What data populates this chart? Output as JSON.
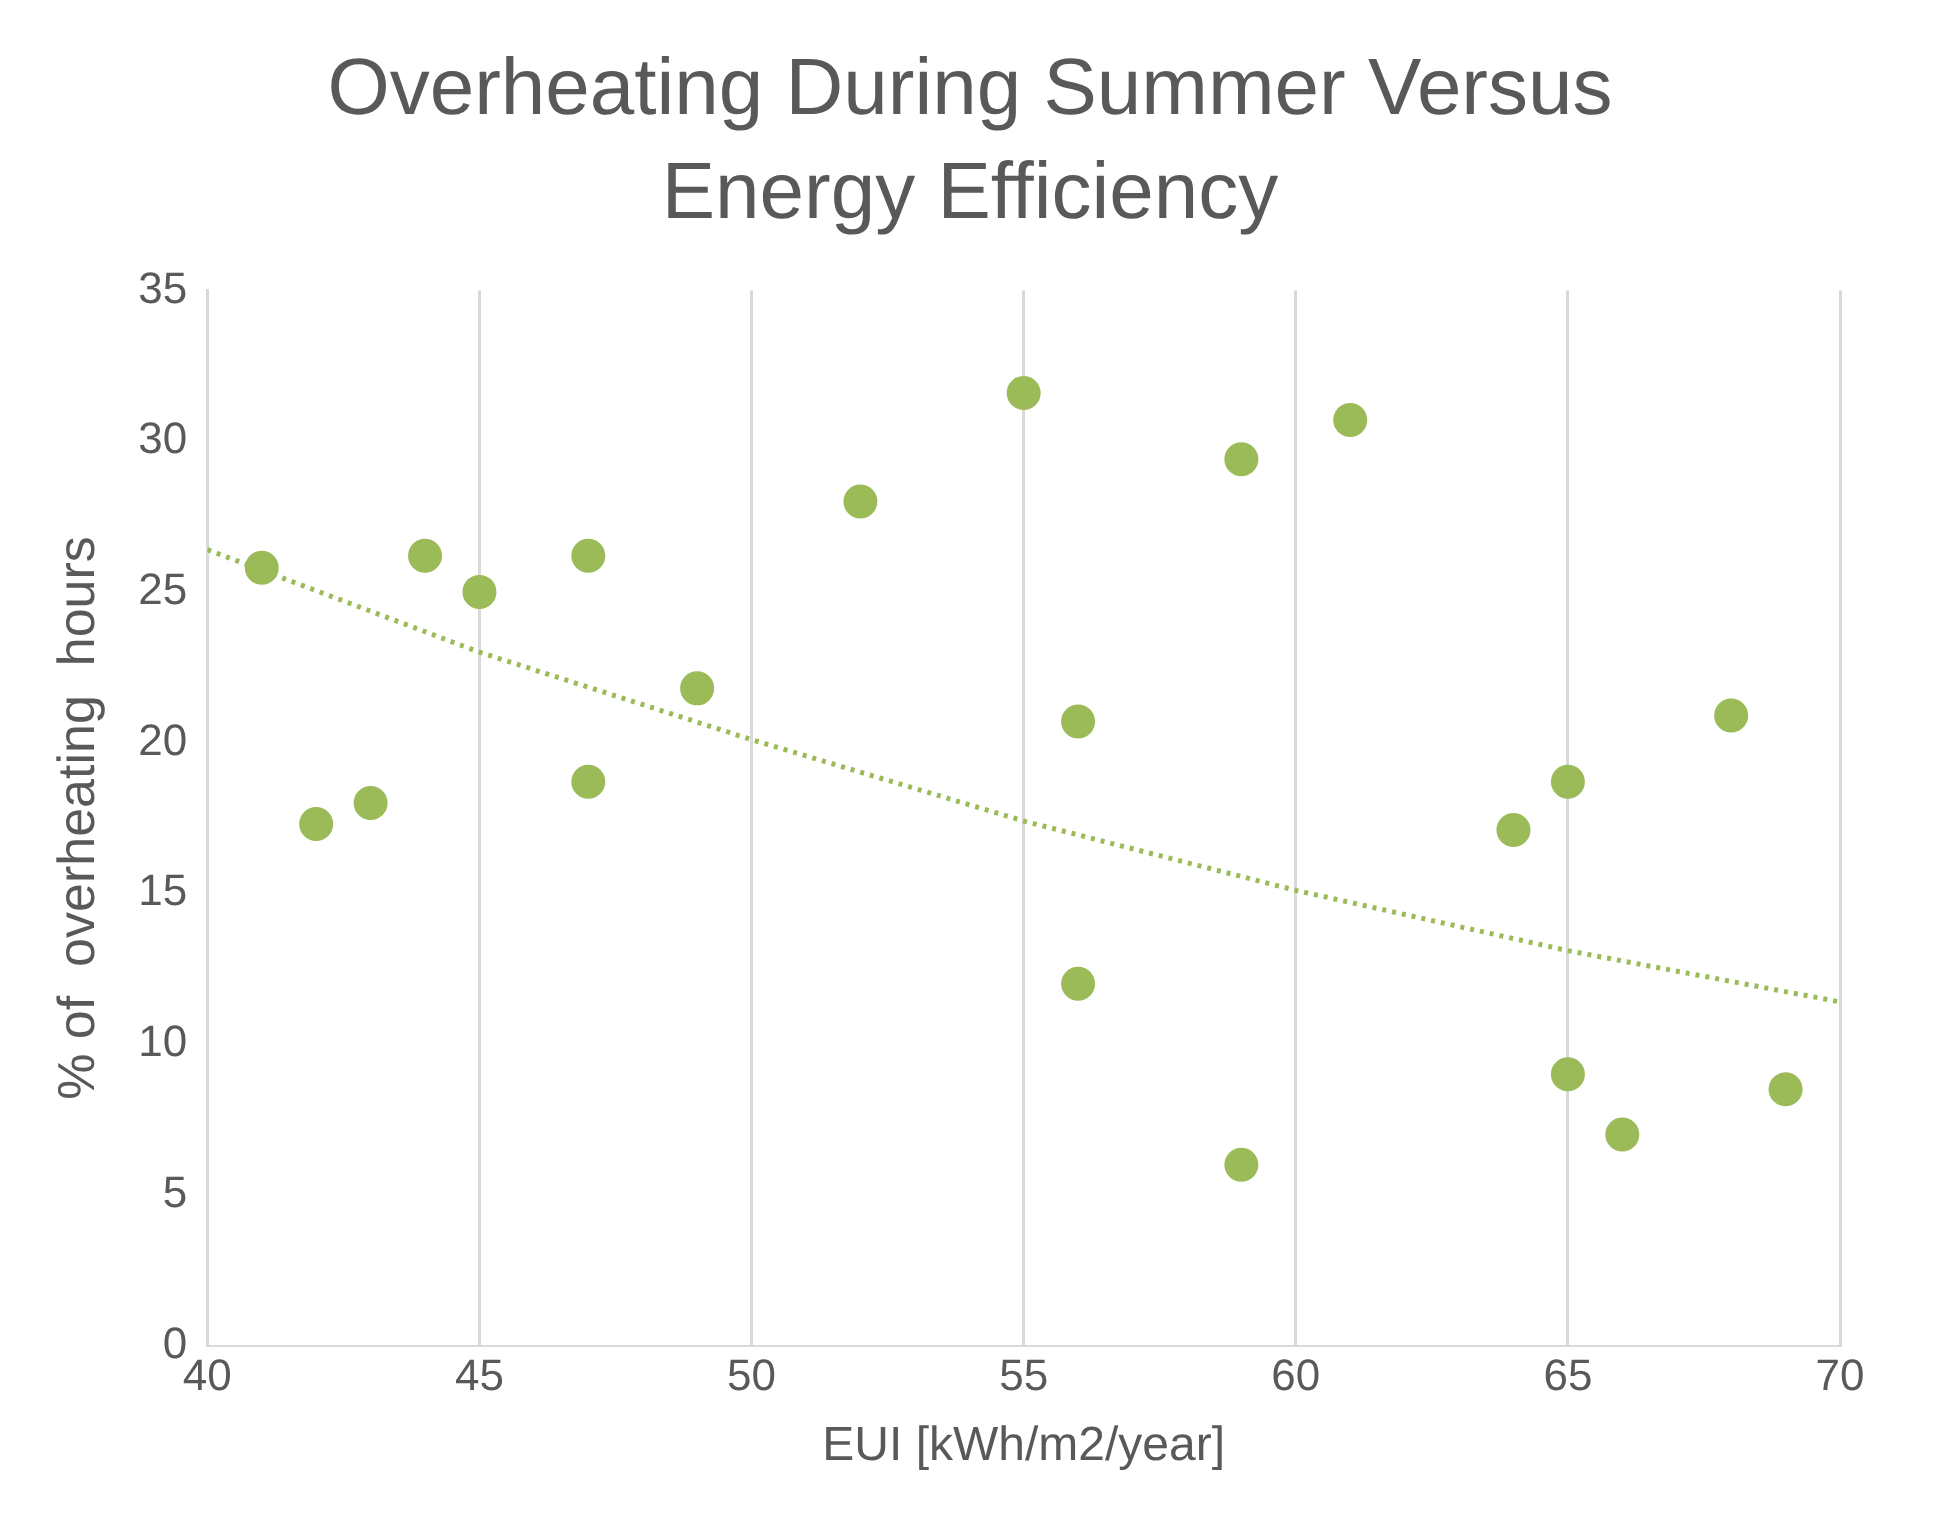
{
  "chart_data": {
    "type": "scatter",
    "title": "Overheating During Summer Versus Energy Efficiency",
    "xlabel": "EUI [kWh/m2/year]",
    "ylabel": "% of  overheating  hours",
    "xlim": [
      40,
      70
    ],
    "xticks": [
      40,
      45,
      50,
      55,
      60,
      65,
      70
    ],
    "ylim": [
      0,
      35
    ],
    "yticks": [
      0,
      5,
      10,
      15,
      20,
      25,
      30,
      35
    ],
    "grid": "x",
    "legend": false,
    "marker": "circle",
    "series": [
      {
        "type": "scatter",
        "color": "#9bbb59",
        "x": [
          41,
          42,
          43,
          44,
          45,
          47,
          47,
          49,
          52,
          55,
          56,
          56,
          59,
          59,
          61,
          64,
          65,
          65,
          66,
          68,
          69
        ],
        "values": [
          25.8,
          17.3,
          18.0,
          26.2,
          25.0,
          26.2,
          18.7,
          21.8,
          28.0,
          31.6,
          20.7,
          12.0,
          29.4,
          6.0,
          30.7,
          17.1,
          18.7,
          9.0,
          7.0,
          20.9,
          8.5
        ]
      },
      {
        "type": "line",
        "color": "#9bbb59",
        "line_style": "dotted",
        "marker": "none",
        "x": [
          40,
          45,
          50,
          55,
          60,
          65,
          70
        ],
        "values": [
          26.4,
          23.0,
          20.1,
          17.4,
          15.1,
          13.1,
          11.4
        ]
      }
    ]
  }
}
